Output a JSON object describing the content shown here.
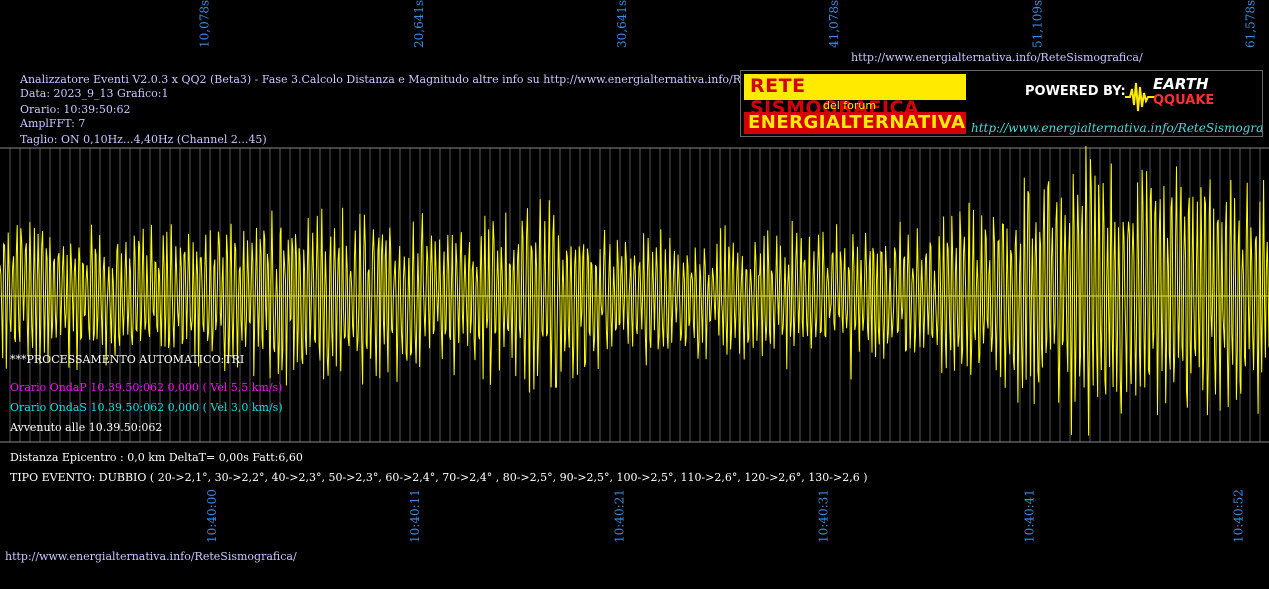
{
  "colors": {
    "background": "#000000",
    "signal": "#ffff00",
    "grid": "#555555",
    "tick_text": "#3a8de0",
    "info_text": "#c8c8ff",
    "wave_p": "#ff00ff",
    "wave_s": "#00e0e0",
    "white": "#ffffff"
  },
  "header": {
    "title": "Analizzatore Eventi V2.0.3 x QQ2 (Beta3) - Fase 3.Calcolo Distanza e Magnitudo altre info su http://www.energialternativa.info/ReteSism",
    "data": "Data: 2023_9_13 Grafico:1",
    "orario": "Orario: 10:39:50:62",
    "amplfft": "AmplFFT: 7",
    "taglio": "Taglio: ON 0,10Hz...4,40Hz       (Channel 2...45)"
  },
  "top_url": "http://www.energialternativa.info/ReteSismografica/",
  "bottom_url": "http://www.energialternativa.info/ReteSismografica/",
  "logo": {
    "rete": "RETE SISMOGRAFICA",
    "forum": "del forum",
    "energia": "ENERGIALTERNATIVA",
    "powered": "POWERED BY:",
    "earth": "EARTH",
    "qquake": "QQUAKE",
    "url": "http://www.energialternativa.info/ReteSismografica"
  },
  "processing": {
    "auto": "***PROCESSAMENTO AUTOMATICO:TRI",
    "onda_p": "Orario OndaP 10.39.50:062  0,000 ( Vel 5,5 km/s)",
    "onda_s": "Orario OndaS 10.39.50:062  0,000 ( Vel 3,0 km/s)",
    "avvenuto": "Avvenuto alle 10.39.50:062",
    "distanza": "Distanza Epicentro : 0,0 km DeltaT= 0,00s  Fatt:6,60",
    "tipo": "TIPO EVENTO: DUBBIO ( 20->2,1°, 30->2,2°, 40->2,3°, 50->2,3°, 60->2,4°, 70->2,4° , 80->2,5°, 90->2,5°, 100->2,5°, 110->2,6°, 120->2,6°, 130->2,6 )"
  },
  "chart_data": {
    "type": "line",
    "title": "",
    "xlabel": "",
    "ylabel": "",
    "grid": true,
    "x_range_s": [
      0,
      62.5
    ],
    "y_range": [
      -1,
      1
    ],
    "top_ticks": [
      {
        "label": "10,078s",
        "t": 10.078
      },
      {
        "label": "20,641s",
        "t": 20.641
      },
      {
        "label": "30,641s",
        "t": 30.641
      },
      {
        "label": "41,078s",
        "t": 41.078
      },
      {
        "label": "51,109s",
        "t": 51.109
      },
      {
        "label": "61,578s",
        "t": 61.578
      }
    ],
    "bottom_ticks": [
      {
        "label": "10:40:00",
        "t": 10.45
      },
      {
        "label": "10:40:11",
        "t": 20.45
      },
      {
        "label": "10:40:21",
        "t": 30.5
      },
      {
        "label": "10:40:31",
        "t": 40.55
      },
      {
        "label": "10:40:41",
        "t": 50.7
      },
      {
        "label": "10:40:52",
        "t": 61.0
      }
    ],
    "series": [
      {
        "envelope": [
          {
            "t": 0,
            "a": 0.5
          },
          {
            "t": 5,
            "a": 0.42
          },
          {
            "t": 10,
            "a": 0.45
          },
          {
            "t": 14,
            "a": 0.62
          },
          {
            "t": 18,
            "a": 0.55
          },
          {
            "t": 22,
            "a": 0.48
          },
          {
            "t": 27,
            "a": 0.68
          },
          {
            "t": 30,
            "a": 0.45
          },
          {
            "t": 35,
            "a": 0.38
          },
          {
            "t": 40,
            "a": 0.45
          },
          {
            "t": 45,
            "a": 0.5
          },
          {
            "t": 50,
            "a": 0.7
          },
          {
            "t": 53,
            "a": 1.0
          },
          {
            "t": 54.5,
            "a": 1.0
          },
          {
            "t": 57,
            "a": 0.85
          },
          {
            "t": 60,
            "a": 0.8
          },
          {
            "t": 62.5,
            "a": 0.7
          }
        ]
      }
    ]
  }
}
